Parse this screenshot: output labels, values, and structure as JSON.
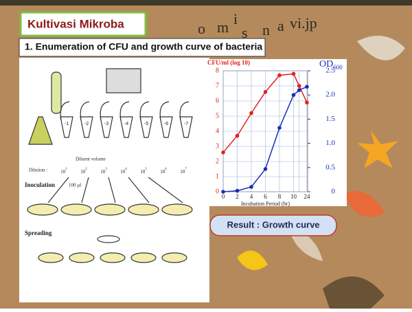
{
  "header": {
    "title": "Kultivasi Mikroba",
    "subtitle": "1. Enumeration of CFU and growth curve of bacteria",
    "watermark": [
      "o",
      "m",
      "i",
      "s",
      "n",
      "a",
      "vi.jp"
    ]
  },
  "diagram": {
    "tubes": [
      "-1",
      "-2",
      "-3",
      "-4",
      "-5",
      "-6",
      "-7"
    ],
    "diluent_label": "Diluent volume",
    "dilution_label": "Dilution :",
    "dilutions": [
      {
        "base": "10",
        "exp": "1"
      },
      {
        "base": "10",
        "exp": "2"
      },
      {
        "base": "10",
        "exp": "3"
      },
      {
        "base": "10",
        "exp": "4"
      },
      {
        "base": "10",
        "exp": "5"
      },
      {
        "base": "10",
        "exp": "6"
      },
      {
        "base": "10",
        "exp": "7"
      }
    ],
    "inoculation": "Inoculation",
    "volume": "100 µl",
    "spreading": "Spreading"
  },
  "chart_data": {
    "type": "line",
    "y_label": "CFU/ml (log 10)",
    "y2_label": {
      "main": "OD",
      "sub": "600"
    },
    "x_label": "Incubation Period (hr)",
    "categories": [
      "0",
      "2",
      "4",
      "6",
      "8",
      "10",
      null,
      "24"
    ],
    "series": [
      {
        "name": "CFU",
        "color": "#e02020",
        "values": [
          2.6,
          3.7,
          5.2,
          6.6,
          7.7,
          7.8,
          7.0,
          5.9
        ]
      },
      {
        "name": "OD600",
        "color": "#1a2fb8",
        "axis": "y2",
        "values": [
          0,
          0.02,
          0.1,
          0.47,
          1.32,
          2.0,
          2.1,
          2.17
        ]
      }
    ],
    "ylim": [
      0,
      8
    ],
    "yticks": [
      0,
      1,
      2,
      3,
      4,
      5,
      6,
      7,
      8
    ],
    "y2lim": [
      0,
      2.5
    ],
    "y2ticks": [
      0,
      0.5,
      {
        "value": 1,
        "label": "1.0"
      },
      1.5,
      {
        "value": 2,
        "label": "2.0"
      },
      2.5
    ],
    "grid": true
  },
  "result": "Result : Growth curve"
}
